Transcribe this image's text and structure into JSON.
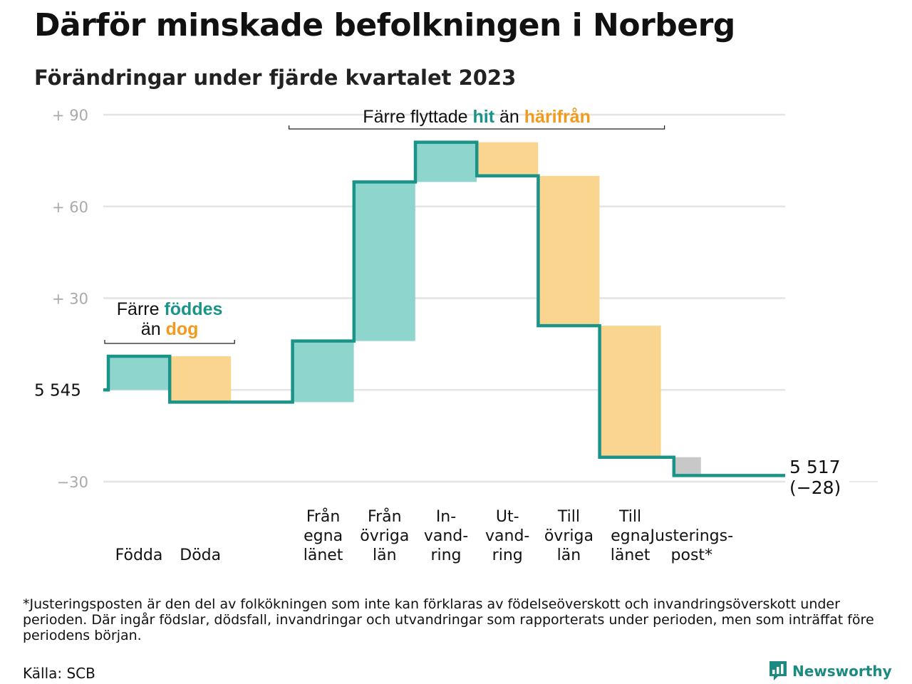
{
  "title": "Därför minskade befolkningen i Norberg",
  "subtitle": "Förändringar under fjärde kvartalet 2023",
  "colors": {
    "increase": "#8ed5cd",
    "decrease": "#fad58f",
    "adjustment": "#c8c8c8",
    "line": "#1a9488",
    "accent_teal": "#1a9488",
    "accent_orange": "#f29a1e",
    "grid": "#e4e4e4",
    "tick_text": "#aaaaaa"
  },
  "chart_data": {
    "type": "waterfall",
    "start_value": 5545,
    "start_label": "5 545",
    "end_value": 5517,
    "end_label": "5 517",
    "end_change_label": "(−28)",
    "y_ticks": [
      {
        "value": 90,
        "label": "+  90"
      },
      {
        "value": 60,
        "label": "+  60"
      },
      {
        "value": 30,
        "label": "+  30"
      },
      {
        "value": 0,
        "label": ""
      },
      {
        "value": -30,
        "label": "−30"
      }
    ],
    "ylim": [
      -30,
      90
    ],
    "categories": [
      {
        "label": [
          "Födda"
        ],
        "change": 11,
        "kind": "increase"
      },
      {
        "label": [
          "Döda"
        ],
        "change": -15,
        "kind": "decrease"
      },
      {
        "label": [
          ""
        ],
        "change": 0,
        "kind": "gap"
      },
      {
        "label": [
          "Från",
          "egna",
          "länet"
        ],
        "change": 20,
        "kind": "increase"
      },
      {
        "label": [
          "Från",
          "övriga",
          "län"
        ],
        "change": 52,
        "kind": "increase"
      },
      {
        "label": [
          "In-",
          "vand-",
          "ring"
        ],
        "change": 13,
        "kind": "increase"
      },
      {
        "label": [
          "Ut-",
          "vand-",
          "ring"
        ],
        "change": -11,
        "kind": "decrease"
      },
      {
        "label": [
          "Till",
          "övriga",
          "län"
        ],
        "change": -49,
        "kind": "decrease"
      },
      {
        "label": [
          "Till",
          "egna",
          "länet"
        ],
        "change": -43,
        "kind": "decrease"
      },
      {
        "label": [
          "Justerings-",
          "post*"
        ],
        "change": -6,
        "kind": "adjustment"
      }
    ],
    "annotations": [
      {
        "lines": [
          [
            {
              "text": "Färre ",
              "style": "plain"
            },
            {
              "text": "föddes",
              "style": "teal"
            }
          ],
          [
            {
              "text": "än ",
              "style": "plain"
            },
            {
              "text": "dog",
              "style": "orange"
            }
          ]
        ],
        "from_index": 0,
        "to_index": 1
      },
      {
        "lines": [
          [
            {
              "text": "Färre flyttade ",
              "style": "plain"
            },
            {
              "text": "hit",
              "style": "teal"
            },
            {
              "text": " än ",
              "style": "plain"
            },
            {
              "text": "härifrån",
              "style": "orange"
            }
          ]
        ],
        "from_index": 3,
        "to_index": 8
      }
    ]
  },
  "footnote": "*Justeringsposten är den del av folkökningen som inte kan förklaras av födelseöverskott och invandringsöverskott under perioden. Där ingår födslar, dödsfall, invandringar och utvandringar som rapporterats under perioden, men som inträffat före periodens början.",
  "source": "Källa: SCB",
  "brand": "Newsworthy"
}
